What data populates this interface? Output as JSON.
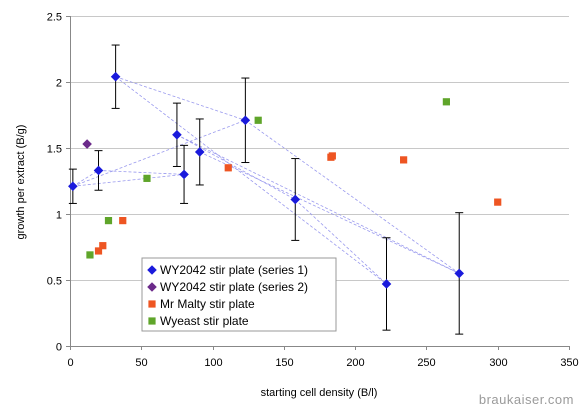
{
  "chart_data": {
    "type": "scatter",
    "xlabel": "starting cell density (B/l)",
    "ylabel": "growth per extract (B/g)",
    "xlim": [
      0,
      350
    ],
    "ylim": [
      0,
      2.5
    ],
    "x_ticks": [
      "0",
      "50",
      "100",
      "150",
      "200",
      "250",
      "300",
      "350"
    ],
    "y_ticks": [
      "0",
      "0.5",
      "1",
      "1.5",
      "2",
      "2.5"
    ],
    "grid": "horizontal",
    "legend_position": "bottom-left",
    "series": [
      {
        "name": "WY2042 stir plate (series 1)",
        "marker": "diamond",
        "color": "#1a1adc",
        "x": [
          2,
          20,
          32,
          75,
          80,
          91,
          123,
          158,
          222,
          273
        ],
        "y": [
          1.21,
          1.33,
          2.04,
          1.6,
          1.3,
          1.47,
          1.71,
          1.11,
          0.47,
          0.55
        ],
        "error": [
          0.13,
          0.15,
          0.24,
          0.24,
          0.22,
          0.25,
          0.32,
          0.31,
          0.35,
          0.46
        ],
        "connections": [
          [
            0,
            1
          ],
          [
            0,
            4
          ],
          [
            0,
            6
          ],
          [
            1,
            4
          ],
          [
            2,
            6
          ],
          [
            2,
            8
          ],
          [
            3,
            7
          ],
          [
            3,
            9
          ],
          [
            5,
            9
          ],
          [
            6,
            9
          ],
          [
            7,
            8
          ]
        ]
      },
      {
        "name": "WY2042 stir plate (series 2)",
        "marker": "diamond",
        "color": "#6b2a8a",
        "x": [
          12
        ],
        "y": [
          1.53
        ]
      },
      {
        "name": "Mr Malty stir plate",
        "marker": "square",
        "color": "#ee5522",
        "x": [
          20,
          23,
          37,
          111,
          183,
          184,
          234,
          300
        ],
        "y": [
          0.72,
          0.76,
          0.95,
          1.35,
          1.43,
          1.44,
          1.41,
          1.09
        ]
      },
      {
        "name": "Wyeast stir plate",
        "marker": "square",
        "color": "#5fa52a",
        "x": [
          14,
          27,
          54,
          132,
          264
        ],
        "y": [
          0.69,
          0.95,
          1.27,
          1.71,
          1.85
        ]
      }
    ]
  },
  "watermark": "braukaiser.com"
}
